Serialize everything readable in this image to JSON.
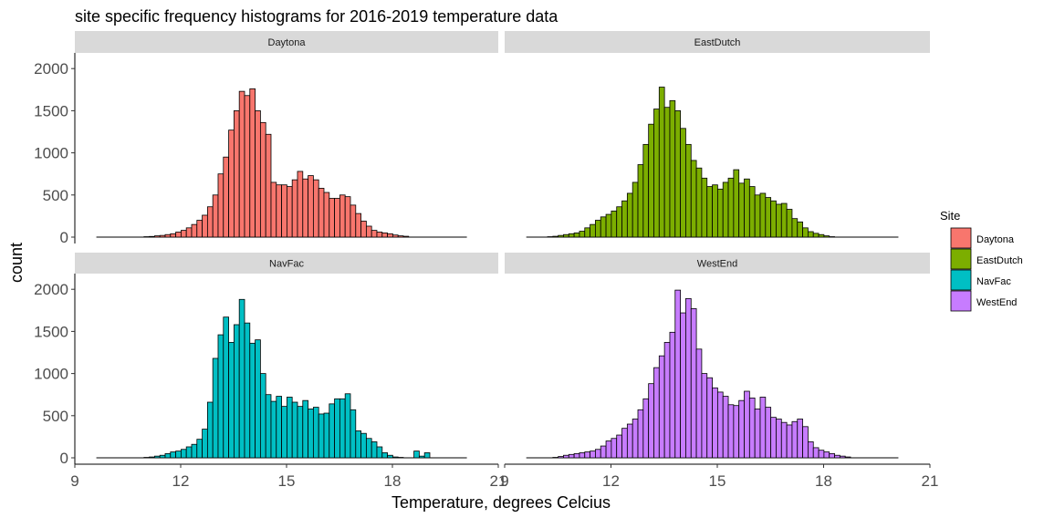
{
  "chart_data": {
    "type": "bar",
    "chart_kind": "faceted histogram",
    "title": "site specific frequency histograms for 2016-2019 temperature data",
    "xlabel": "Temperature, degrees Celcius",
    "ylabel": "count",
    "xlim": [
      9,
      21
    ],
    "ylim": [
      0,
      2150
    ],
    "x_ticks": [
      9,
      12,
      15,
      18,
      21
    ],
    "y_ticks": [
      0,
      500,
      1000,
      1500,
      2000
    ],
    "grid": false,
    "bin_start": 9.61,
    "bin_width": 0.15,
    "legend": {
      "title": "Site",
      "placement": "right",
      "entries": [
        {
          "label": "Daytona",
          "color": "#F8766D"
        },
        {
          "label": "EastDutch",
          "color": "#7CAE00"
        },
        {
          "label": "NavFac",
          "color": "#00BFC4"
        },
        {
          "label": "WestEnd",
          "color": "#C77CFF"
        }
      ]
    },
    "facets": [
      {
        "name": "Daytona",
        "color": "#F8766D",
        "values": [
          0,
          0,
          0,
          0,
          0,
          0,
          0,
          0,
          0,
          5,
          8,
          15,
          20,
          30,
          40,
          60,
          80,
          110,
          150,
          200,
          260,
          360,
          500,
          750,
          950,
          1270,
          1500,
          1730,
          1680,
          1760,
          1500,
          1360,
          1220,
          650,
          620,
          620,
          600,
          680,
          780,
          690,
          730,
          680,
          580,
          530,
          460,
          460,
          500,
          480,
          380,
          280,
          190,
          130,
          80,
          60,
          50,
          40,
          25,
          15,
          10,
          0,
          0,
          0,
          0,
          0,
          0,
          0,
          0,
          0,
          0,
          0
        ]
      },
      {
        "name": "EastDutch",
        "color": "#7CAE00",
        "values": [
          0,
          0,
          0,
          0,
          5,
          10,
          20,
          30,
          40,
          50,
          70,
          110,
          150,
          200,
          240,
          270,
          310,
          360,
          430,
          520,
          650,
          860,
          1100,
          1340,
          1520,
          1780,
          1540,
          1620,
          1500,
          1290,
          1100,
          910,
          820,
          700,
          600,
          620,
          570,
          650,
          700,
          800,
          640,
          690,
          600,
          500,
          520,
          470,
          430,
          390,
          400,
          330,
          220,
          180,
          110,
          65,
          45,
          30,
          15,
          5,
          0,
          0,
          0,
          0,
          0,
          0,
          0,
          0,
          0,
          0,
          0,
          0
        ]
      },
      {
        "name": "NavFac",
        "color": "#00BFC4",
        "values": [
          0,
          0,
          0,
          0,
          0,
          0,
          0,
          0,
          0,
          5,
          10,
          20,
          30,
          50,
          70,
          80,
          100,
          130,
          160,
          220,
          340,
          660,
          1180,
          1460,
          1670,
          1370,
          1580,
          1880,
          1600,
          1360,
          1400,
          1000,
          750,
          670,
          730,
          610,
          720,
          660,
          610,
          680,
          580,
          600,
          520,
          530,
          640,
          700,
          700,
          760,
          570,
          320,
          290,
          230,
          190,
          130,
          60,
          30,
          10,
          5,
          0,
          0,
          80,
          20,
          60,
          0,
          0,
          0,
          0,
          0,
          0,
          0
        ]
      },
      {
        "name": "WestEnd",
        "color": "#C77CFF",
        "values": [
          0,
          0,
          0,
          0,
          0,
          5,
          15,
          30,
          40,
          50,
          60,
          70,
          80,
          100,
          140,
          200,
          230,
          270,
          350,
          400,
          460,
          570,
          700,
          880,
          1070,
          1210,
          1370,
          1490,
          1990,
          1720,
          1890,
          1770,
          1290,
          1000,
          950,
          830,
          780,
          730,
          630,
          620,
          680,
          790,
          710,
          580,
          720,
          600,
          480,
          460,
          420,
          390,
          430,
          460,
          370,
          190,
          120,
          90,
          70,
          50,
          30,
          20,
          10,
          0,
          0,
          0,
          0,
          0,
          0,
          0,
          0,
          0
        ]
      }
    ]
  }
}
